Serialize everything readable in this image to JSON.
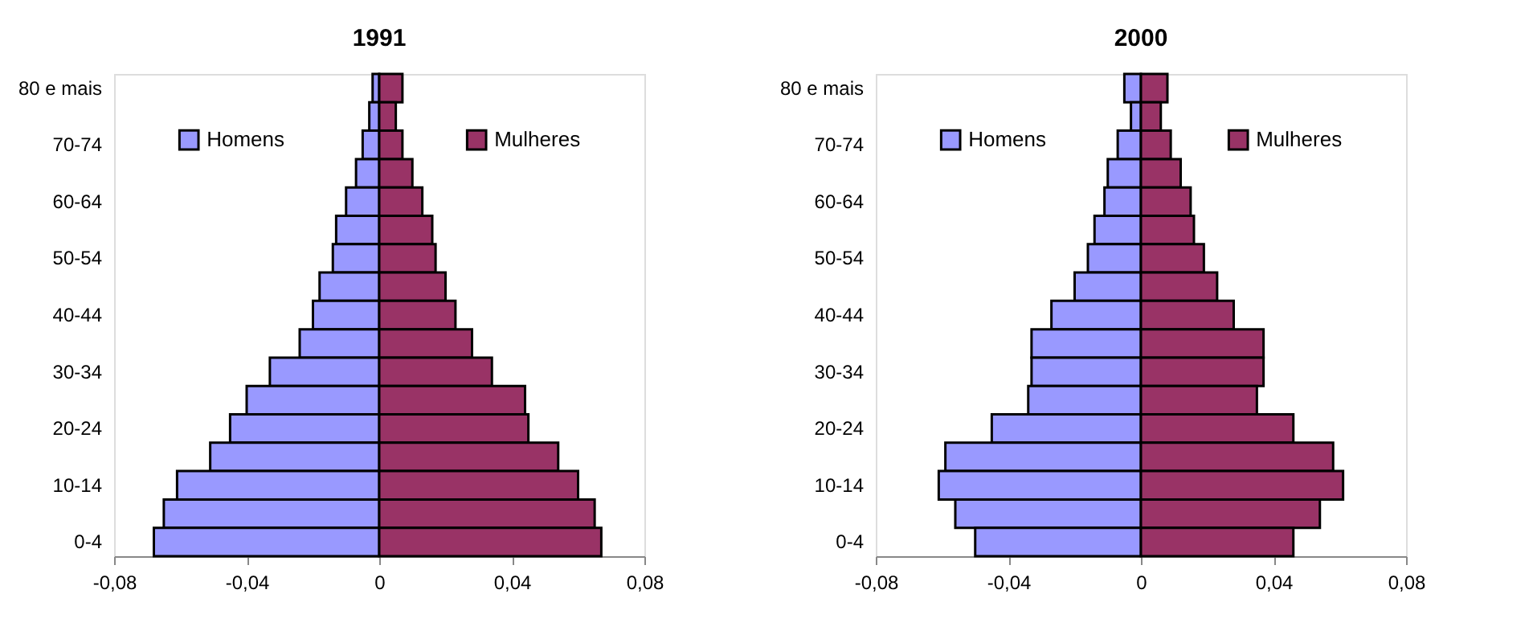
{
  "chart_data": [
    {
      "type": "bar",
      "orientation": "horizontal",
      "title": "1991",
      "categories": [
        "80 e mais",
        null,
        "70-74",
        null,
        "60-64",
        null,
        "50-54",
        null,
        "40-44",
        null,
        "30-34",
        null,
        "20-24",
        null,
        "10-14",
        null,
        "0-4"
      ],
      "series": [
        {
          "name": "Homens",
          "color": "#9999ff",
          "values": [
            -0.002,
            -0.003,
            -0.005,
            -0.007,
            -0.01,
            -0.013,
            -0.014,
            -0.018,
            -0.02,
            -0.024,
            -0.033,
            -0.04,
            -0.045,
            -0.051,
            -0.061,
            -0.065,
            -0.068
          ]
        },
        {
          "name": "Mulheres",
          "color": "#993366",
          "values": [
            0.007,
            0.005,
            0.007,
            0.01,
            0.013,
            0.016,
            0.017,
            0.02,
            0.023,
            0.028,
            0.034,
            0.044,
            0.045,
            0.054,
            0.06,
            0.065,
            0.067
          ]
        }
      ],
      "xlim": [
        -0.08,
        0.08
      ],
      "xticks": [
        {
          "value": -0.08,
          "label": "-0,08"
        },
        {
          "value": -0.04,
          "label": "-0,04"
        },
        0,
        {
          "value": 0.04,
          "label": "0,04"
        },
        {
          "value": 0.08,
          "label": "0,08"
        }
      ],
      "legend": "top",
      "grid": false,
      "stacked": true
    },
    {
      "type": "bar",
      "orientation": "horizontal",
      "title": "2000",
      "categories": [
        "80 e mais",
        null,
        "70-74",
        null,
        "60-64",
        null,
        "50-54",
        null,
        "40-44",
        null,
        "30-34",
        null,
        "20-24",
        null,
        "10-14",
        null,
        "0-4"
      ],
      "series": [
        {
          "name": "Homens",
          "color": "#9999ff",
          "values": [
            -0.005,
            -0.003,
            -0.007,
            -0.01,
            -0.011,
            -0.014,
            -0.016,
            -0.02,
            -0.027,
            -0.033,
            -0.033,
            -0.034,
            -0.045,
            -0.059,
            -0.061,
            -0.056,
            -0.05
          ]
        },
        {
          "name": "Mulheres",
          "color": "#993366",
          "values": [
            0.008,
            0.006,
            0.009,
            0.012,
            0.015,
            0.016,
            0.019,
            0.023,
            0.028,
            0.037,
            0.037,
            0.035,
            0.046,
            0.058,
            0.061,
            0.054,
            0.046
          ]
        }
      ],
      "xlim": [
        -0.08,
        0.08
      ],
      "xticks": [
        {
          "value": -0.08,
          "label": "-0,08"
        },
        {
          "value": -0.04,
          "label": "-0,04"
        },
        0,
        {
          "value": 0.04,
          "label": "0,04"
        },
        {
          "value": 0.08,
          "label": "0,08"
        }
      ],
      "legend": "top",
      "grid": false,
      "stacked": true
    }
  ]
}
